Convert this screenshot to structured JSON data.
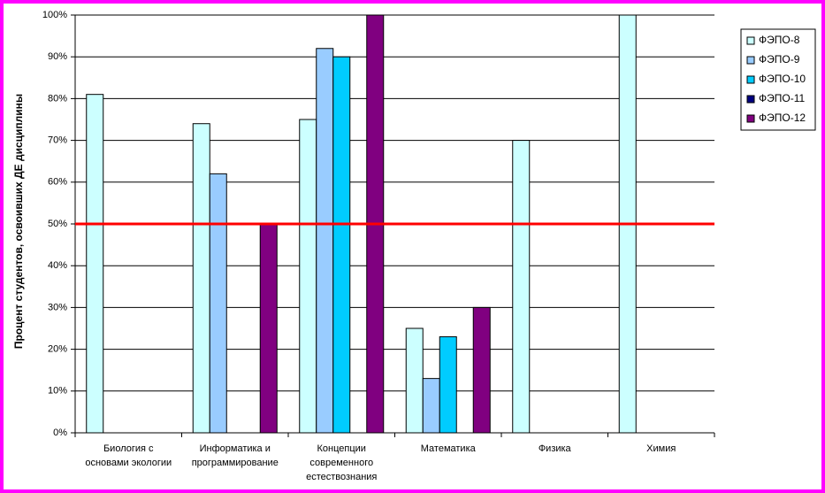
{
  "chart_data": {
    "type": "bar",
    "y_label": "Процент студентов, освоивших ДЕ дисциплины",
    "categories": [
      [
        "Биология с",
        "основами экологии"
      ],
      [
        "Информатика и",
        "программирование"
      ],
      [
        "Концепции",
        "современного",
        "естествознания"
      ],
      [
        "Математика"
      ],
      [
        "Физика"
      ],
      [
        "Химия"
      ]
    ],
    "series": [
      {
        "name": "ФЭПО-8",
        "color": "#ccffff",
        "values": [
          81,
          74,
          75,
          25,
          70,
          100
        ]
      },
      {
        "name": "ФЭПО-9",
        "color": "#99ccff",
        "values": [
          null,
          62,
          92,
          13,
          null,
          null
        ]
      },
      {
        "name": "ФЭПО-10",
        "color": "#00ccff",
        "values": [
          null,
          null,
          90,
          23,
          null,
          null
        ]
      },
      {
        "name": "ФЭПО-11",
        "color": "#000080",
        "values": [
          null,
          null,
          null,
          null,
          null,
          null
        ]
      },
      {
        "name": "ФЭПО-12",
        "color": "#800080",
        "values": [
          null,
          50,
          100,
          30,
          null,
          null
        ]
      }
    ],
    "ylim": [
      0,
      100
    ],
    "yticks": [
      {
        "value": 0,
        "label": "0%"
      },
      {
        "value": 10,
        "label": "10%"
      },
      {
        "value": 20,
        "label": "20%"
      },
      {
        "value": 30,
        "label": "30%"
      },
      {
        "value": 40,
        "label": "40%"
      },
      {
        "value": 50,
        "label": "50%"
      },
      {
        "value": 60,
        "label": "60%"
      },
      {
        "value": 70,
        "label": "70%"
      },
      {
        "value": 80,
        "label": "80%"
      },
      {
        "value": 90,
        "label": "90%"
      },
      {
        "value": 100,
        "label": "100%"
      }
    ],
    "grid": true,
    "threshold": {
      "value": 50,
      "color": "#ff0000"
    },
    "legend": "right"
  }
}
